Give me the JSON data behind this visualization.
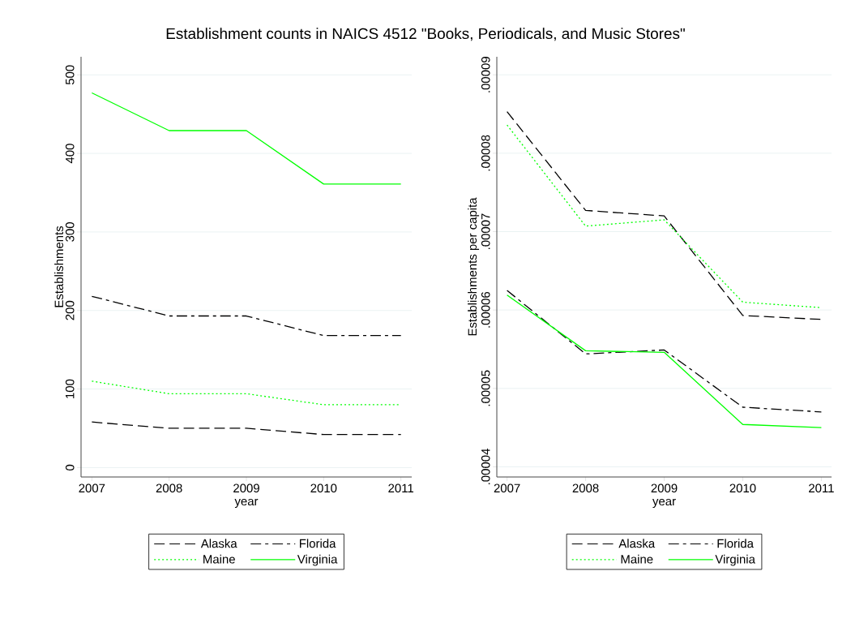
{
  "chart_data": [
    {
      "type": "line",
      "title": "Establishment counts in NAICS 4512  \"Books, Periodicals, and Music Stores\"",
      "xlabel": "year",
      "ylabel": "Establishments",
      "x": [
        2007,
        2008,
        2009,
        2010,
        2011
      ],
      "xlim": [
        2006.86,
        2011.14
      ],
      "xticks": [
        2007,
        2008,
        2009,
        2010,
        2011
      ],
      "ylim": [
        -12,
        523
      ],
      "yticks": [
        0,
        100,
        200,
        300,
        400,
        500
      ],
      "grid": "y",
      "legend": "bottom",
      "series": [
        {
          "name": "Alaska",
          "color": "#000000",
          "line_style": "dashed",
          "values": [
            58,
            50,
            50,
            42,
            42
          ]
        },
        {
          "name": "Florida",
          "color": "#000000",
          "line_style": "dashdot",
          "values": [
            218,
            193,
            193,
            168,
            168
          ]
        },
        {
          "name": "Maine",
          "color": "#00ff00",
          "line_style": "dotted",
          "values": [
            110,
            94,
            94,
            80,
            80
          ]
        },
        {
          "name": "Virginia",
          "color": "#00ff00",
          "line_style": "solid",
          "values": [
            477,
            429,
            429,
            361,
            361
          ]
        }
      ]
    },
    {
      "type": "line",
      "xlabel": "year",
      "ylabel": "Establishments per capita",
      "x": [
        2007,
        2008,
        2009,
        2010,
        2011
      ],
      "xlim": [
        2006.87,
        2011.13
      ],
      "xticks": [
        2007,
        2008,
        2009,
        2010,
        2011
      ],
      "ylim": [
        3.87e-05,
        9.23e-05
      ],
      "yticks": [
        {
          "value": 4e-05,
          "label": ".00004"
        },
        {
          "value": 5e-05,
          "label": ".00005"
        },
        {
          "value": 6e-05,
          "label": ".00006"
        },
        {
          "value": 7e-05,
          "label": ".00007"
        },
        {
          "value": 8e-05,
          "label": ".00008"
        },
        {
          "value": 9e-05,
          "label": ".00009"
        }
      ],
      "grid": "y",
      "legend": "bottom",
      "series": [
        {
          "name": "Alaska",
          "color": "#000000",
          "line_style": "dashed",
          "values": [
            8.53e-05,
            7.27e-05,
            7.2e-05,
            5.93e-05,
            5.88e-05
          ]
        },
        {
          "name": "Florida",
          "color": "#000000",
          "line_style": "dashdot",
          "values": [
            6.25e-05,
            5.44e-05,
            5.49e-05,
            4.76e-05,
            4.7e-05
          ]
        },
        {
          "name": "Maine",
          "color": "#00ff00",
          "line_style": "dotted",
          "values": [
            8.36e-05,
            7.07e-05,
            7.15e-05,
            6.1e-05,
            6.03e-05
          ]
        },
        {
          "name": "Virginia",
          "color": "#00ff00",
          "line_style": "solid",
          "values": [
            6.19e-05,
            5.48e-05,
            5.46e-05,
            4.54e-05,
            4.5e-05
          ]
        }
      ]
    }
  ]
}
